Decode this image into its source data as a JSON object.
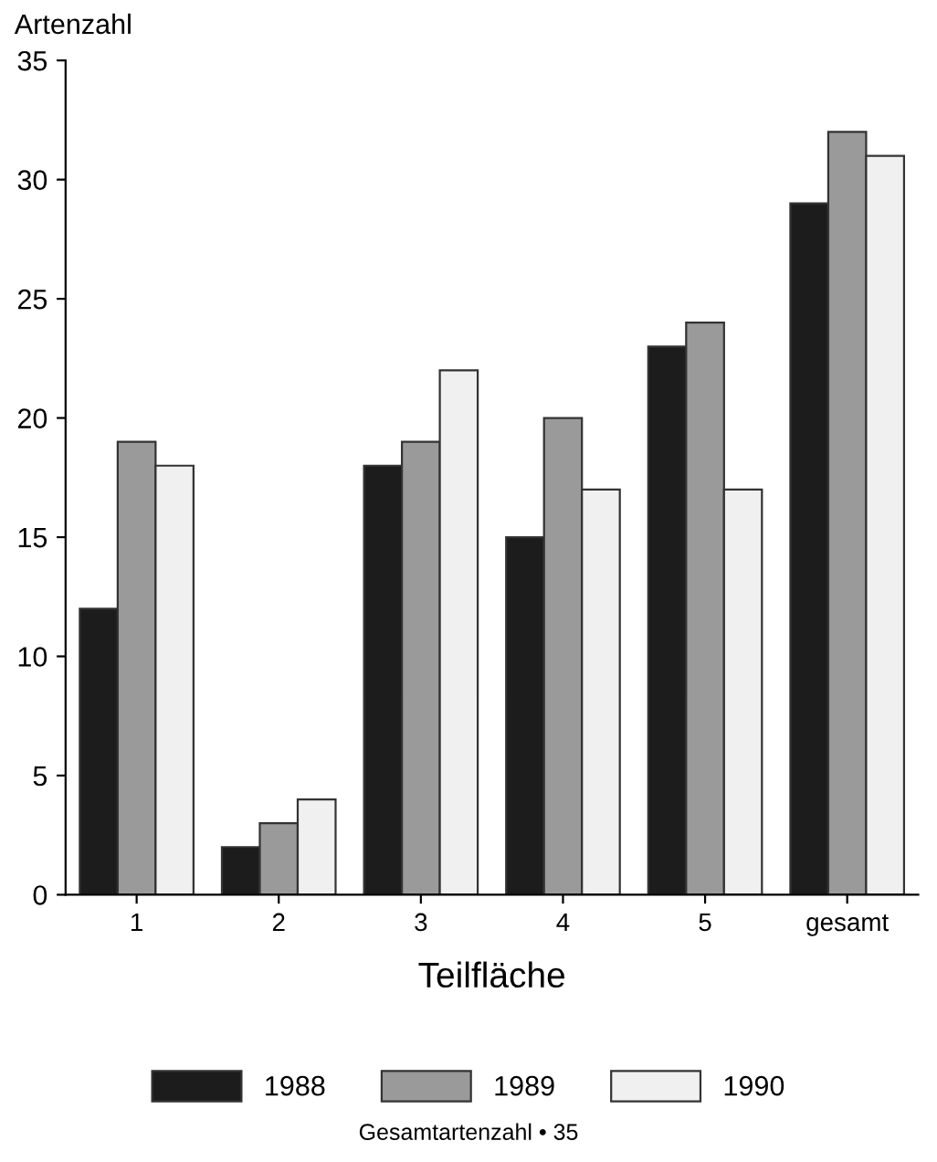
{
  "chart_data": {
    "type": "bar",
    "ylabel": "Artenzahl",
    "xlabel": "Teilfläche",
    "categories": [
      "1",
      "2",
      "3",
      "4",
      "5",
      "gesamt"
    ],
    "series": [
      {
        "name": "1988",
        "color": "#1c1c1c",
        "values": [
          12,
          2,
          18,
          15,
          23,
          29
        ]
      },
      {
        "name": "1989",
        "color": "#9a9a9a",
        "values": [
          19,
          3,
          19,
          20,
          24,
          32
        ]
      },
      {
        "name": "1990",
        "color": "#f0f0f0",
        "values": [
          18,
          4,
          22,
          17,
          17,
          31
        ]
      }
    ],
    "ylim": [
      0,
      35
    ],
    "yticks": [
      0,
      5,
      10,
      15,
      20,
      25,
      30,
      35
    ],
    "grid": false,
    "legend": "bottom",
    "annotations": [
      "Gesamtartenzahl • 35"
    ]
  }
}
